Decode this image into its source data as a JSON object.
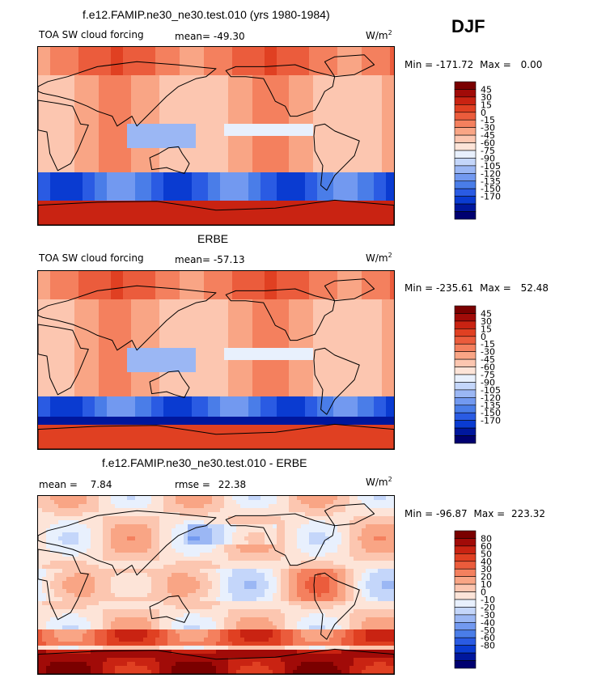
{
  "season": "DJF",
  "colors": {
    "forcing_scale": [
      "#000070",
      "#00179d",
      "#0a3bd1",
      "#2a5be3",
      "#4a7de8",
      "#7299f0",
      "#9bb7f4",
      "#c4d6fa",
      "#e8f0fd",
      "#fde4d8",
      "#fcc6b0",
      "#f9a585",
      "#f4805e",
      "#eb5c3c",
      "#e04022",
      "#c92312",
      "#a10b08",
      "#7a0000"
    ],
    "diff_scale": [
      "#000070",
      "#00179d",
      "#0a3bd1",
      "#2a5be3",
      "#4a7de8",
      "#7299f0",
      "#9bb7f4",
      "#c4d6fa",
      "#e8f0fd",
      "#fde4d8",
      "#fcc6b0",
      "#f9a585",
      "#f4805e",
      "#eb5c3c",
      "#e04022",
      "#c92312",
      "#a10b08",
      "#7a0000"
    ]
  },
  "chart_data": [
    {
      "type": "heatmap",
      "title": "f.e12.FAMIP.ne30_ne30.test.010 (yrs 1980-1984)",
      "variable": "TOA SW cloud forcing",
      "mean_label": "mean=",
      "mean_value": "-49.30",
      "units": "W/m",
      "units_sup": "2",
      "min_label": "Min =",
      "min_value": "-171.72",
      "max_label": "Max =",
      "max_value": "0.00",
      "colorbar_ticks": [
        "45",
        "30",
        "15",
        "0",
        "-15",
        "-30",
        "-45",
        "-60",
        "-75",
        "-90",
        "-105",
        "-120",
        "-135",
        "-150",
        "-170"
      ]
    },
    {
      "type": "heatmap",
      "title": "ERBE",
      "variable": "TOA SW cloud forcing",
      "mean_label": "mean=",
      "mean_value": "-57.13",
      "units": "W/m",
      "units_sup": "2",
      "min_label": "Min =",
      "min_value": "-235.61",
      "max_label": "Max =",
      "max_value": "52.48",
      "colorbar_ticks": [
        "45",
        "30",
        "15",
        "0",
        "-15",
        "-30",
        "-45",
        "-60",
        "-75",
        "-90",
        "-105",
        "-120",
        "-135",
        "-150",
        "-170"
      ]
    },
    {
      "type": "heatmap",
      "title": "f.e12.FAMIP.ne30_ne30.test.010 - ERBE",
      "mean_label": "mean =",
      "mean_value": "7.84",
      "rmse_label": "rmse =",
      "rmse_value": "22.38",
      "units": "W/m",
      "units_sup": "2",
      "min_label": "Min =",
      "min_value": "-96.87",
      "max_label": "Max =",
      "max_value": "223.32",
      "colorbar_ticks": [
        "80",
        "60",
        "50",
        "40",
        "30",
        "20",
        "10",
        "0",
        "-10",
        "-20",
        "-30",
        "-40",
        "-50",
        "-60",
        "-80"
      ]
    }
  ]
}
